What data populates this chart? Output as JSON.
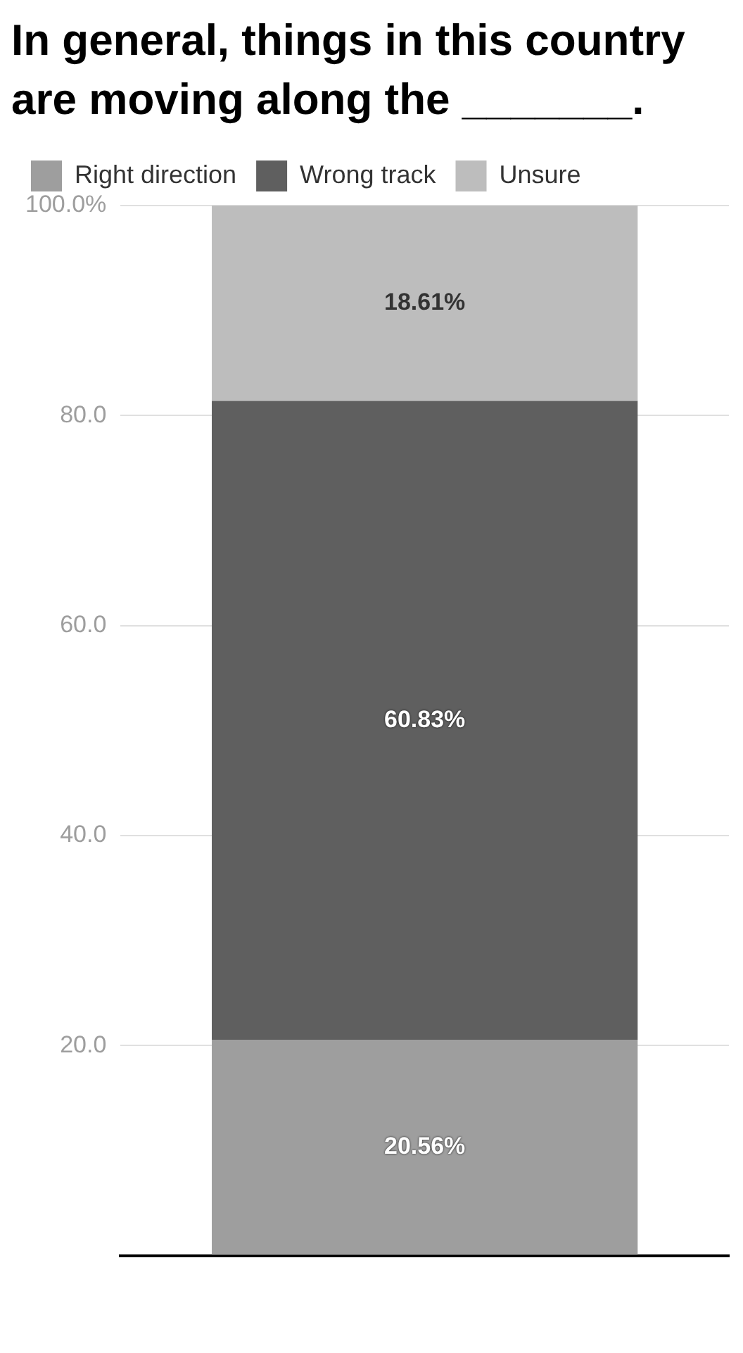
{
  "chart_data": {
    "type": "bar",
    "title": "In general, things in this country are moving along the _______.",
    "categories": [
      null
    ],
    "stacked": true,
    "ylim": [
      0,
      100
    ],
    "yticks": [
      {
        "value": 0,
        "label": null
      },
      {
        "value": 20,
        "label": "20.0"
      },
      {
        "value": 40,
        "label": "40.0"
      },
      {
        "value": 60,
        "label": "60.0"
      },
      {
        "value": 80,
        "label": "80.0"
      },
      {
        "value": 100,
        "label": "100.0%"
      }
    ],
    "grid": "y",
    "legend": "top left",
    "series": [
      {
        "name": "Right direction",
        "color": "#9e9e9e",
        "values": [
          20.56
        ],
        "value_labels": [
          "20.56%"
        ]
      },
      {
        "name": "Wrong track",
        "color": "#5f5f5f",
        "values": [
          60.83
        ],
        "value_labels": [
          "60.83%"
        ]
      },
      {
        "name": "Unsure",
        "color": "#bdbdbd",
        "values": [
          18.61
        ],
        "value_labels": [
          "18.61%"
        ]
      }
    ]
  }
}
